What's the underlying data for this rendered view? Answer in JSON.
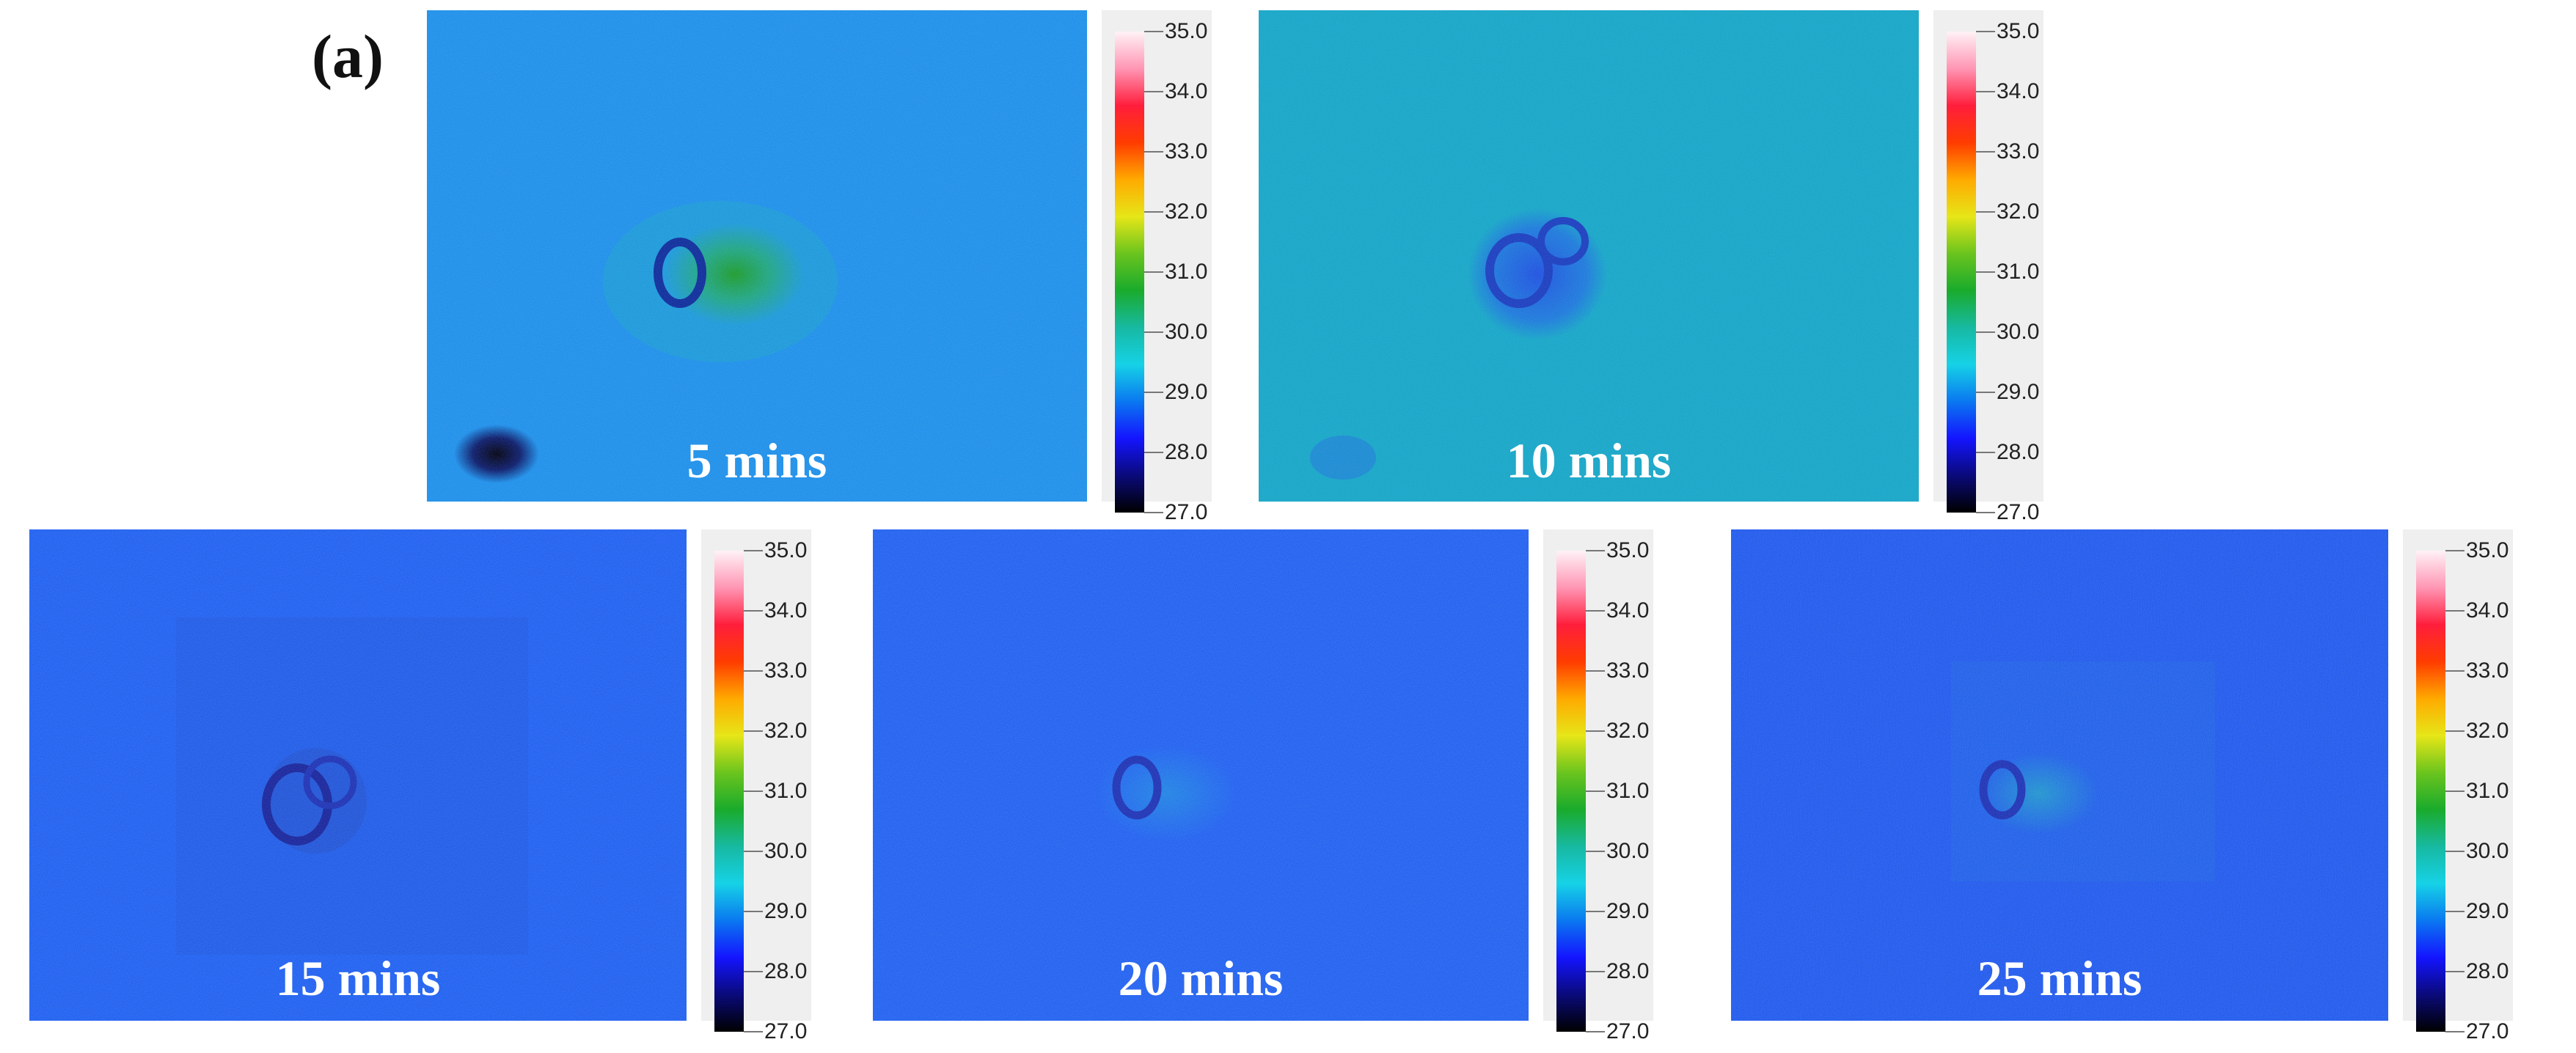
{
  "figure": {
    "label": "(a)",
    "colormap": [
      "#000000",
      "#0a0a7a",
      "#1414ff",
      "#0a78f0",
      "#16d2e6",
      "#17b9a1",
      "#1aab2c",
      "#6ac41e",
      "#e6e618",
      "#ffaa00",
      "#ff3c00",
      "#ff1e3c",
      "#ff96b4",
      "#fff2f6"
    ],
    "colorbar_ticks": [
      "35.0",
      "34.0",
      "33.0",
      "32.0",
      "31.0",
      "30.0",
      "29.0",
      "28.0",
      "27.0"
    ],
    "frames": [
      {
        "id": "f5",
        "time_label": "5 mins",
        "base": "#1b8ee9",
        "hotspot": "#1ea66d",
        "spot": "#0a1a6a"
      },
      {
        "id": "f10",
        "time_label": "10 mins",
        "base": "#15a5c7",
        "hotspot": "#1e5fe0",
        "spot": "#1570e0"
      },
      {
        "id": "f15",
        "time_label": "15 mins",
        "base": "#1c5ef0",
        "hotspot": "#1f4ec8",
        "spot": ""
      },
      {
        "id": "f20",
        "time_label": "20 mins",
        "base": "#1e5ff0",
        "hotspot": "#1d8ae0",
        "spot": ""
      },
      {
        "id": "f25",
        "time_label": "25 mins",
        "base": "#1d57ec",
        "hotspot": "#1fa0c8",
        "spot": ""
      }
    ]
  }
}
